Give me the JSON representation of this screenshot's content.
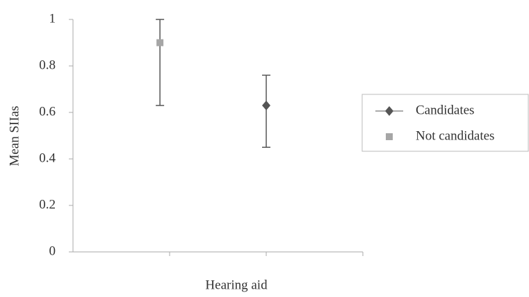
{
  "chart_data": {
    "type": "scatter",
    "xlabel": "Hearing aid",
    "ylabel": "Mean SIIas",
    "xlim": [
      0,
      3
    ],
    "ylim": [
      0,
      1
    ],
    "yticks": [
      0,
      0.2,
      0.4,
      0.6,
      0.8,
      1
    ],
    "legend": "right",
    "series": [
      {
        "name": "Candidates",
        "color": "#555555",
        "marker": "diamond",
        "x": [
          2
        ],
        "values": [
          0.63
        ],
        "error_plus": [
          0.13
        ],
        "error_minus": [
          0.18
        ]
      },
      {
        "name": "Not candidates",
        "color": "#a6a6a6",
        "marker": "square",
        "x": [
          0.9
        ],
        "values": [
          0.9
        ],
        "error_plus": [
          0.1
        ],
        "error_minus": [
          0.27
        ]
      }
    ]
  }
}
